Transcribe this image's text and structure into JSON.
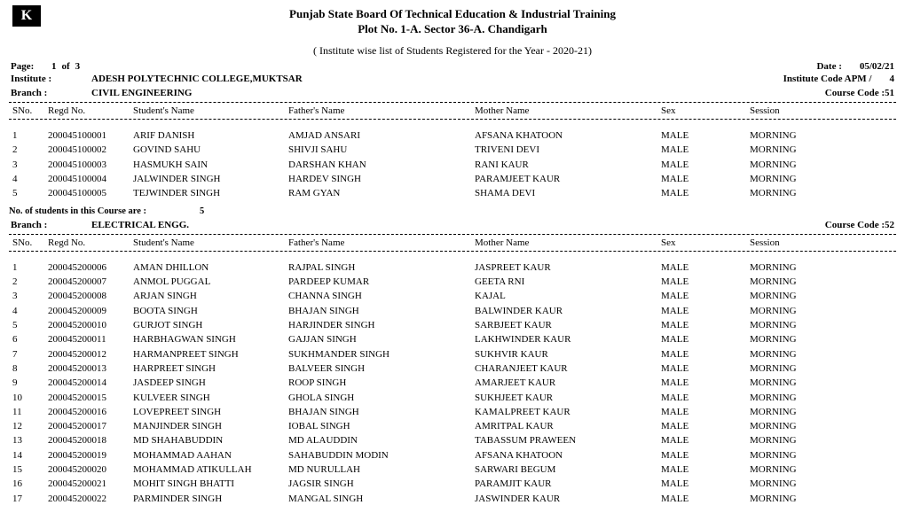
{
  "logo_text": "K",
  "header": {
    "line1": "Punjab State Board Of Technical Education & Industrial Training",
    "line2": "Plot No. 1-A. Sector 36-A. Chandigarh"
  },
  "subheader": "( Institute wise list of Students Registered for the Year - 2020-21)",
  "page": {
    "label": "Page:",
    "current": "1",
    "of_label": "of",
    "total": "3"
  },
  "date": {
    "label": "Date :",
    "value": "05/02/21"
  },
  "institute": {
    "label": "Institute  :",
    "name": "ADESH POLYTECHNIC COLLEGE,MUKTSAR",
    "code_label": "Institute Code APM  /",
    "code_value": "4"
  },
  "columns": {
    "sno": "SNo.",
    "regd": "Regd No.",
    "student": "Student's Name",
    "father": "Father's Name",
    "mother": "Mother Name",
    "sex": "Sex",
    "session": "Session"
  },
  "summary_label": "No. of students in this Course are    :",
  "branch_label": "Branch    :",
  "course_code_label": "Course Code :",
  "branches": [
    {
      "name": "CIVIL ENGINEERING",
      "code": "51",
      "count": "5",
      "rows": [
        {
          "sno": "1",
          "regd": "200045100001",
          "student": "ARIF  DANISH",
          "father": "AMJAD ANSARI",
          "mother": "AFSANA KHATOON",
          "sex": "MALE",
          "session": "MORNING"
        },
        {
          "sno": "2",
          "regd": "200045100002",
          "student": "GOVIND  SAHU",
          "father": "SHIVJI SAHU",
          "mother": "TRIVENI DEVI",
          "sex": "MALE",
          "session": "MORNING"
        },
        {
          "sno": "3",
          "regd": "200045100003",
          "student": "HASMUKH  SAIN",
          "father": "DARSHAN KHAN",
          "mother": "RANI KAUR",
          "sex": "MALE",
          "session": "MORNING"
        },
        {
          "sno": "4",
          "regd": "200045100004",
          "student": "JALWINDER  SINGH",
          "father": "HARDEV SINGH",
          "mother": "PARAMJEET KAUR",
          "sex": "MALE",
          "session": "MORNING"
        },
        {
          "sno": "5",
          "regd": "200045100005",
          "student": "TEJWINDER  SINGH",
          "father": "RAM GYAN",
          "mother": "SHAMA DEVI",
          "sex": "MALE",
          "session": "MORNING"
        }
      ]
    },
    {
      "name": "ELECTRICAL ENGG.",
      "code": "52",
      "count": null,
      "rows": [
        {
          "sno": "1",
          "regd": "200045200006",
          "student": "AMAN  DHILLON",
          "father": "RAJPAL SINGH",
          "mother": "JASPREET KAUR",
          "sex": "MALE",
          "session": "MORNING"
        },
        {
          "sno": "2",
          "regd": "200045200007",
          "student": "ANMOL  PUGGAL",
          "father": "PARDEEP KUMAR",
          "mother": "GEETA RNI",
          "sex": "MALE",
          "session": "MORNING"
        },
        {
          "sno": "3",
          "regd": "200045200008",
          "student": "ARJAN  SINGH",
          "father": "CHANNA SINGH",
          "mother": "KAJAL",
          "sex": "MALE",
          "session": "MORNING"
        },
        {
          "sno": "4",
          "regd": "200045200009",
          "student": "BOOTA  SINGH",
          "father": "BHAJAN SINGH",
          "mother": "BALWINDER KAUR",
          "sex": "MALE",
          "session": "MORNING"
        },
        {
          "sno": "5",
          "regd": "200045200010",
          "student": "GURJOT  SINGH",
          "father": "HARJINDER SINGH",
          "mother": "SARBJEET KAUR",
          "sex": "MALE",
          "session": "MORNING"
        },
        {
          "sno": "6",
          "regd": "200045200011",
          "student": "HARBHAGWAN  SINGH",
          "father": "GAJJAN SINGH",
          "mother": "LAKHWINDER KAUR",
          "sex": "MALE",
          "session": "MORNING"
        },
        {
          "sno": "7",
          "regd": "200045200012",
          "student": "HARMANPREET  SINGH",
          "father": "SUKHMANDER SINGH",
          "mother": "SUKHVIR KAUR",
          "sex": "MALE",
          "session": "MORNING"
        },
        {
          "sno": "8",
          "regd": "200045200013",
          "student": "HARPREET  SINGH",
          "father": "BALVEER SINGH",
          "mother": "CHARANJEET KAUR",
          "sex": "MALE",
          "session": "MORNING"
        },
        {
          "sno": "9",
          "regd": "200045200014",
          "student": "JASDEEP  SINGH",
          "father": "ROOP SINGH",
          "mother": "AMARJEET KAUR",
          "sex": "MALE",
          "session": "MORNING"
        },
        {
          "sno": "10",
          "regd": "200045200015",
          "student": "KULVEER  SINGH",
          "father": "GHOLA SINGH",
          "mother": "SUKHJEET KAUR",
          "sex": "MALE",
          "session": "MORNING"
        },
        {
          "sno": "11",
          "regd": "200045200016",
          "student": "LOVEPREET  SINGH",
          "father": "BHAJAN SINGH",
          "mother": "KAMALPREET KAUR",
          "sex": "MALE",
          "session": "MORNING"
        },
        {
          "sno": "12",
          "regd": "200045200017",
          "student": "MANJINDER  SINGH",
          "father": "IOBAL SINGH",
          "mother": "AMRITPAL KAUR",
          "sex": "MALE",
          "session": "MORNING"
        },
        {
          "sno": "13",
          "regd": "200045200018",
          "student": "MD  SHAHABUDDIN",
          "father": "MD ALAUDDIN",
          "mother": "TABASSUM PRAWEEN",
          "sex": "MALE",
          "session": "MORNING"
        },
        {
          "sno": "14",
          "regd": "200045200019",
          "student": "MOHAMMAD  AAHAN",
          "father": "SAHABUDDIN MODIN",
          "mother": "AFSANA KHATOON",
          "sex": "MALE",
          "session": "MORNING"
        },
        {
          "sno": "15",
          "regd": "200045200020",
          "student": "MOHAMMAD  ATIKULLAH",
          "father": "MD NURULLAH",
          "mother": "SARWARI BEGUM",
          "sex": "MALE",
          "session": "MORNING"
        },
        {
          "sno": "16",
          "regd": "200045200021",
          "student": "MOHIT SINGH BHATTI",
          "father": "JAGSIR SINGH",
          "mother": "PARAMJIT KAUR",
          "sex": "MALE",
          "session": "MORNING"
        },
        {
          "sno": "17",
          "regd": "200045200022",
          "student": "PARMINDER  SINGH",
          "father": "MANGAL SINGH",
          "mother": "JASWINDER KAUR",
          "sex": "MALE",
          "session": "MORNING"
        }
      ]
    }
  ]
}
